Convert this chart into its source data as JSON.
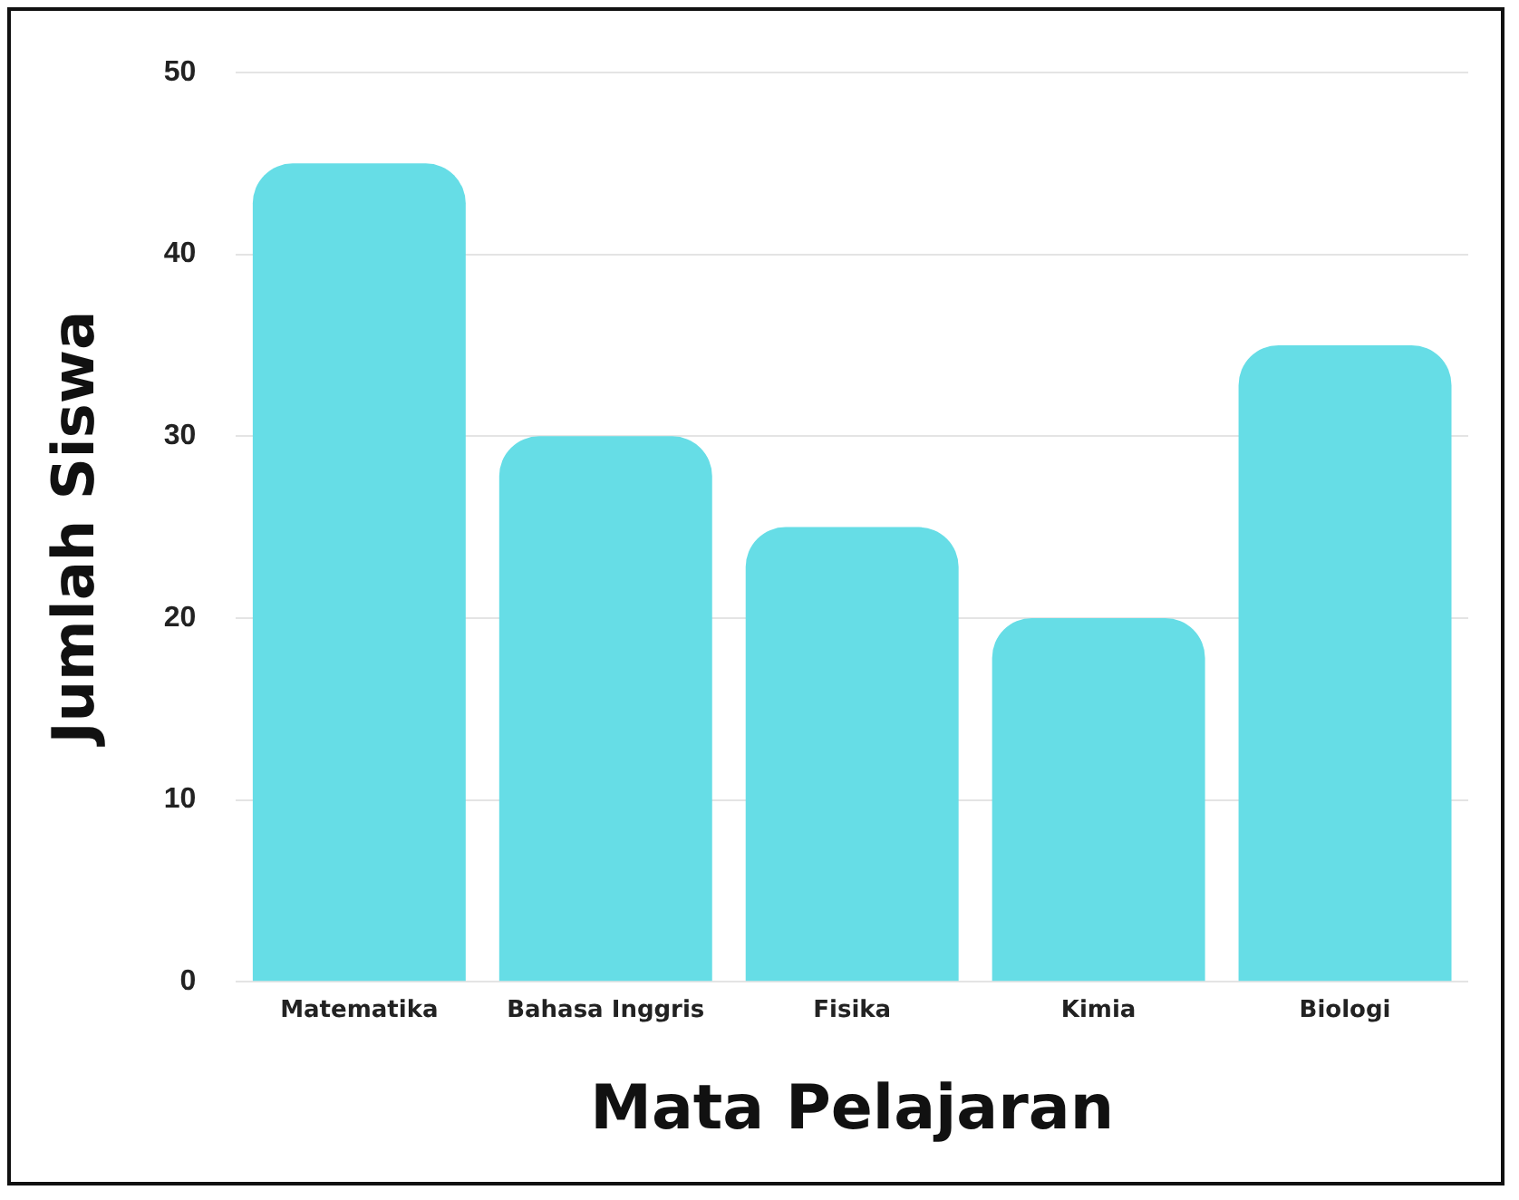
{
  "chart_data": {
    "type": "bar",
    "xlabel": "Mata Pelajaran",
    "ylabel": "Jumlah Siswa",
    "categories": [
      "Matematika",
      "Bahasa Inggris",
      "Fisika",
      "Kimia",
      "Biologi"
    ],
    "values": [
      45,
      30,
      25,
      20,
      35
    ],
    "color": "#66dde6",
    "ylim": [
      0,
      50
    ],
    "yticks": [
      0,
      10,
      20,
      30,
      40,
      50
    ],
    "grid": "y",
    "legend": false
  }
}
